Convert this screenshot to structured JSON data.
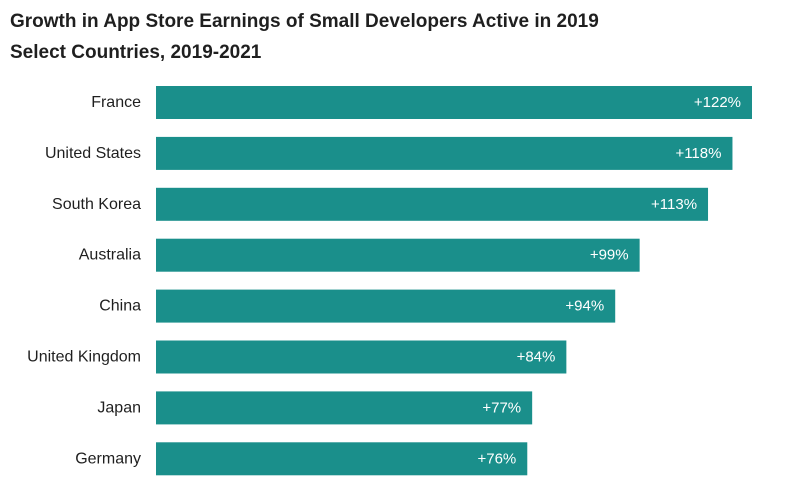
{
  "chart_data": {
    "type": "bar",
    "orientation": "horizontal",
    "title": "Growth in App Store Earnings of Small Developers Active in 2019",
    "subtitle": "Select Countries, 2019-2021",
    "categories": [
      "France",
      "United States",
      "South Korea",
      "Australia",
      "China",
      "United Kingdom",
      "Japan",
      "Germany"
    ],
    "values": [
      122,
      118,
      113,
      99,
      94,
      84,
      77,
      76
    ],
    "value_labels": [
      "+122%",
      "+118%",
      "+113%",
      "+99%",
      "+94%",
      "+84%",
      "+77%",
      "+76%"
    ],
    "xlabel": "",
    "ylabel": "",
    "xlim": [
      0,
      122
    ],
    "bar_color": "#1a8f8b",
    "grid": false
  }
}
